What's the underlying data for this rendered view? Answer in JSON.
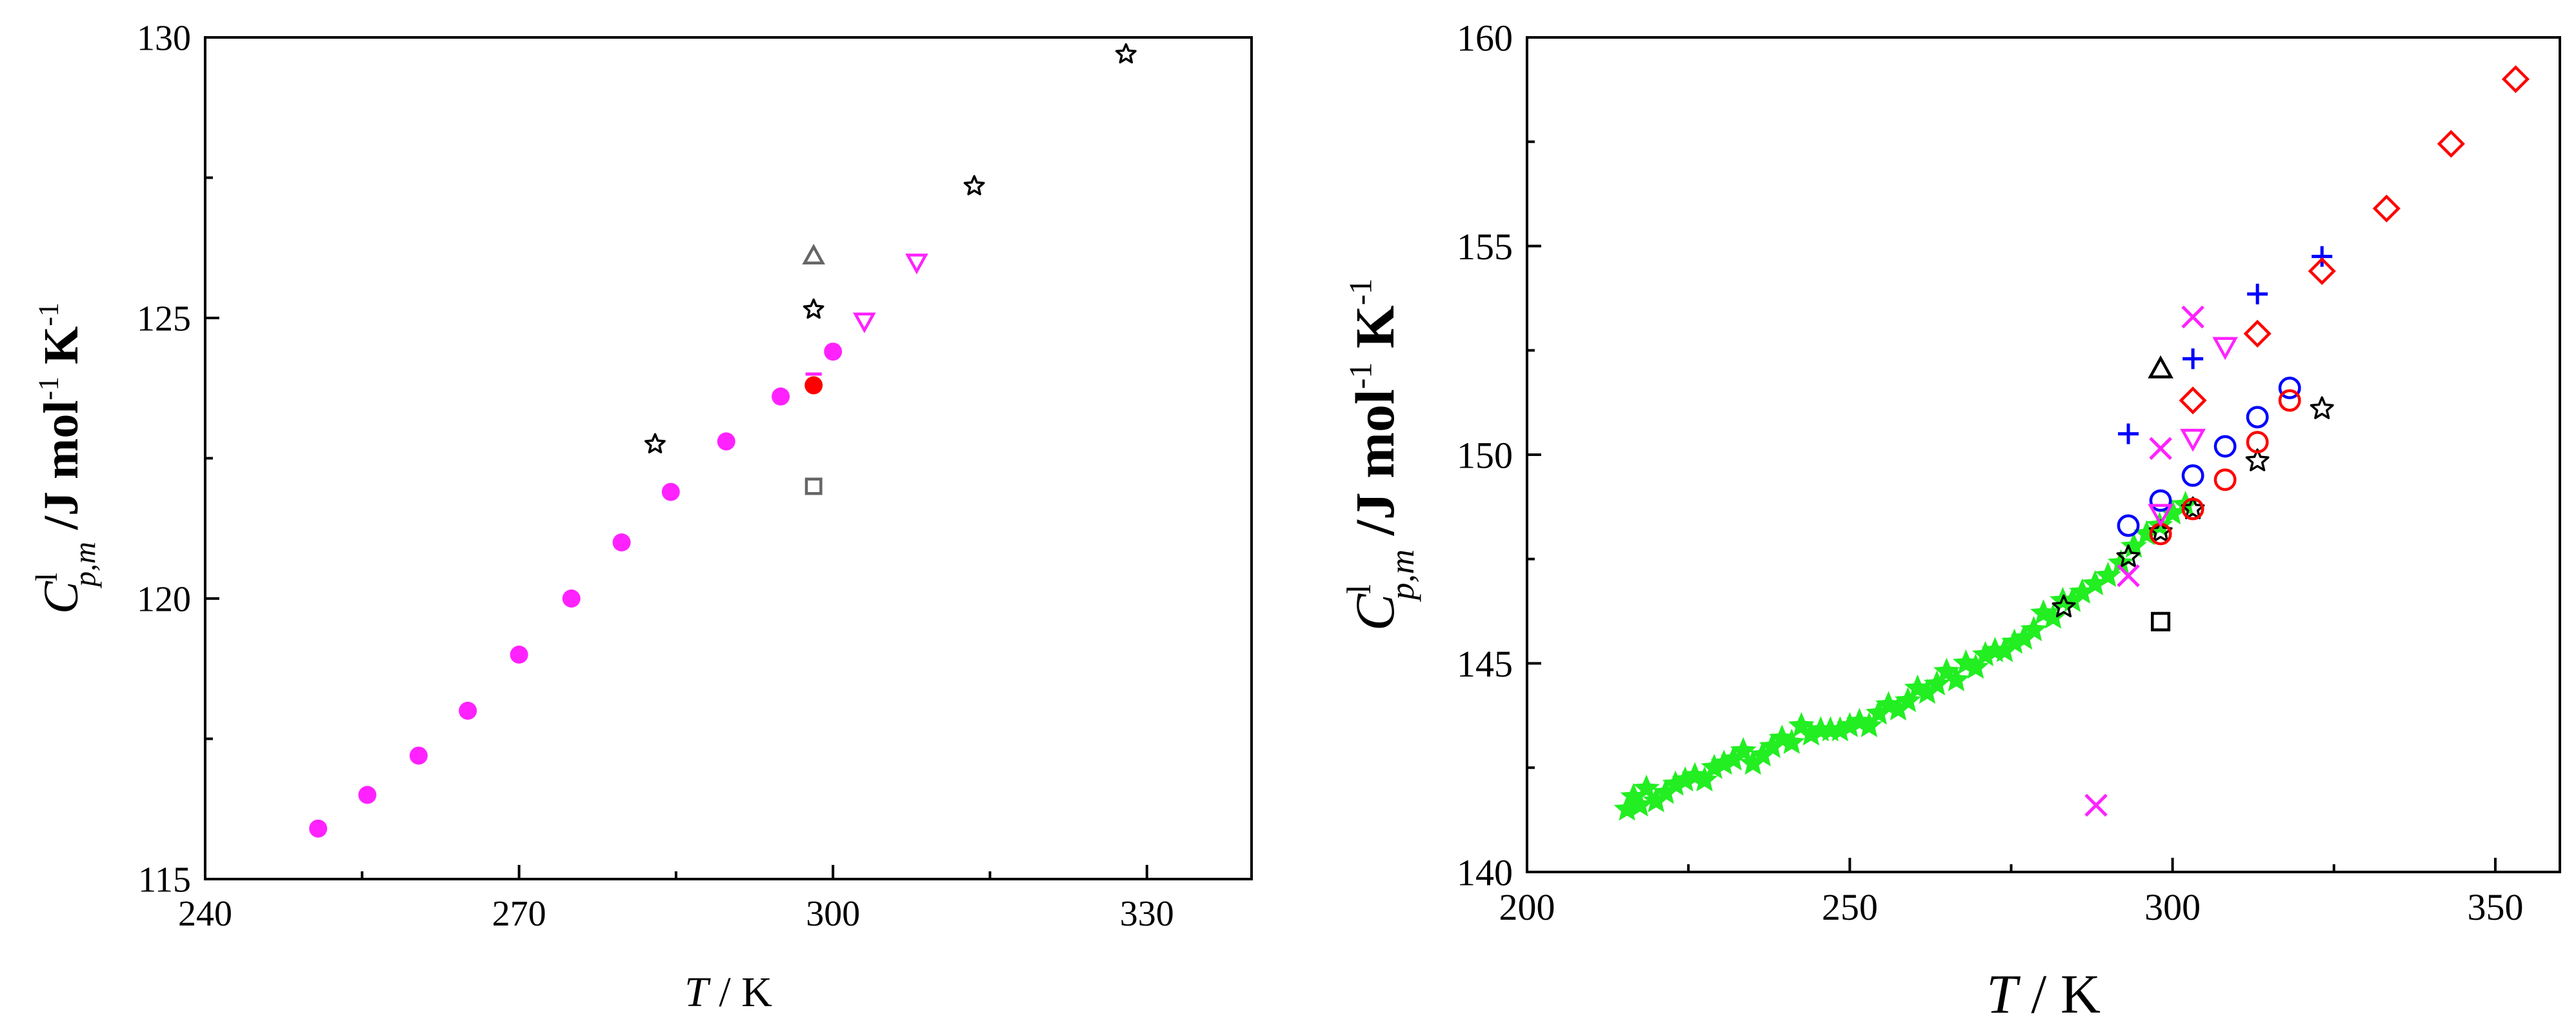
{
  "chart_data": [
    {
      "type": "scatter",
      "xlabel_var": "T",
      "xlabel_unit": " / K",
      "ylabel_main": "C",
      "ylabel_sup": "l",
      "ylabel_sub": "p,m",
      "ylabel_unit": " /J mol",
      "ylabel_exp1": "-1",
      "ylabel_k": " K",
      "ylabel_exp2": "-1",
      "xlim": [
        240,
        340
      ],
      "ylim": [
        115,
        130
      ],
      "xticks": [
        240,
        270,
        300,
        330
      ],
      "yticks": [
        115,
        120,
        125,
        130
      ],
      "grid": false,
      "series": [
        {
          "marker": "filled-circle",
          "color": "#ff22ff",
          "points": [
            [
              250.8,
              115.9
            ],
            [
              255.5,
              116.5
            ],
            [
              260.4,
              117.2
            ],
            [
              265.1,
              118.0
            ],
            [
              270.0,
              119.0
            ],
            [
              275.0,
              120.0
            ],
            [
              279.8,
              121.0
            ],
            [
              284.5,
              121.9
            ],
            [
              289.8,
              122.8
            ],
            [
              295.0,
              123.6
            ],
            [
              300.0,
              124.4
            ]
          ]
        },
        {
          "marker": "filled-circle",
          "color": "#ff0000",
          "points": [
            [
              298.15,
              123.8
            ]
          ]
        },
        {
          "marker": "open-star",
          "color": "#000000",
          "points": [
            [
              283.0,
              122.75
            ],
            [
              298.15,
              125.15
            ],
            [
              313.5,
              127.35
            ],
            [
              328.0,
              129.7
            ]
          ]
        },
        {
          "marker": "open-triangle-up",
          "color": "#666666",
          "points": [
            [
              298.15,
              126.1
            ]
          ]
        },
        {
          "marker": "open-square",
          "color": "#666666",
          "points": [
            [
              298.15,
              122.0
            ]
          ]
        },
        {
          "marker": "open-triangle-down",
          "color": "#ff22ff",
          "points": [
            [
              303.0,
              124.95
            ],
            [
              308.0,
              126.0
            ]
          ]
        },
        {
          "marker": "small-dash",
          "color": "#ff22ff",
          "points": [
            [
              298.15,
              124.0
            ]
          ]
        }
      ]
    },
    {
      "type": "scatter",
      "xlabel_var": "T",
      "xlabel_unit": " / K",
      "ylabel_main": "C",
      "ylabel_sup": "l",
      "ylabel_sub": "p,m",
      "ylabel_unit": " /J mol",
      "ylabel_exp1": "-1",
      "ylabel_k": " K",
      "ylabel_exp2": "-1",
      "xlim": [
        200,
        360
      ],
      "ylim": [
        140,
        160
      ],
      "xticks": [
        200,
        250,
        300,
        350
      ],
      "yticks": [
        140,
        145,
        150,
        155,
        160
      ],
      "grid": false,
      "series": [
        {
          "marker": "filled-star",
          "color": "#22ee22",
          "points": [
            [
              215.5,
              141.5
            ],
            [
              216.5,
              141.8
            ],
            [
              217.5,
              141.6
            ],
            [
              218.5,
              142.0
            ],
            [
              220.0,
              141.7
            ],
            [
              221.5,
              141.9
            ],
            [
              223.0,
              142.1
            ],
            [
              224.5,
              142.2
            ],
            [
              226.0,
              142.3
            ],
            [
              227.5,
              142.2
            ],
            [
              229.0,
              142.5
            ],
            [
              230.5,
              142.6
            ],
            [
              232.0,
              142.7
            ],
            [
              233.5,
              142.9
            ],
            [
              235.0,
              142.6
            ],
            [
              236.5,
              142.8
            ],
            [
              238.0,
              143.0
            ],
            [
              239.5,
              143.2
            ],
            [
              241.0,
              143.1
            ],
            [
              242.5,
              143.5
            ],
            [
              244.0,
              143.3
            ],
            [
              245.5,
              143.4
            ],
            [
              247.0,
              143.4
            ],
            [
              248.5,
              143.4
            ],
            [
              250.0,
              143.5
            ],
            [
              251.5,
              143.6
            ],
            [
              253.0,
              143.5
            ],
            [
              254.5,
              143.8
            ],
            [
              256.0,
              144.0
            ],
            [
              257.5,
              143.9
            ],
            [
              259.0,
              144.1
            ],
            [
              260.5,
              144.4
            ],
            [
              262.0,
              144.3
            ],
            [
              263.5,
              144.5
            ],
            [
              265.0,
              144.8
            ],
            [
              266.5,
              144.6
            ],
            [
              268.0,
              145.0
            ],
            [
              269.5,
              144.9
            ],
            [
              271.0,
              145.2
            ],
            [
              272.5,
              145.3
            ],
            [
              274.0,
              145.3
            ],
            [
              275.5,
              145.5
            ],
            [
              277.0,
              145.6
            ],
            [
              278.5,
              145.8
            ],
            [
              280.0,
              146.2
            ],
            [
              281.5,
              146.1
            ],
            [
              283.0,
              146.5
            ],
            [
              284.5,
              146.5
            ],
            [
              286.0,
              146.7
            ],
            [
              288.0,
              146.9
            ],
            [
              290.0,
              147.1
            ],
            [
              292.0,
              147.4
            ],
            [
              294.0,
              147.8
            ],
            [
              296.0,
              148.1
            ],
            [
              298.0,
              148.3
            ],
            [
              300.0,
              148.6
            ],
            [
              302.0,
              148.8
            ]
          ]
        },
        {
          "marker": "open-star",
          "color": "#000000",
          "points": [
            [
              283.15,
              146.35
            ],
            [
              293.15,
              147.55
            ],
            [
              298.15,
              148.15
            ],
            [
              303.15,
              148.7
            ],
            [
              313.15,
              149.85
            ],
            [
              323.15,
              151.1
            ]
          ]
        },
        {
          "marker": "open-circle",
          "color": "#0000ff",
          "points": [
            [
              293.15,
              148.3
            ],
            [
              298.15,
              148.9
            ],
            [
              303.15,
              149.5
            ],
            [
              308.15,
              150.2
            ],
            [
              313.15,
              150.9
            ],
            [
              318.15,
              151.6
            ]
          ]
        },
        {
          "marker": "open-circle",
          "color": "#ff0000",
          "points": [
            [
              298.15,
              148.1
            ],
            [
              303.15,
              148.7
            ],
            [
              308.15,
              149.4
            ],
            [
              313.15,
              150.3
            ],
            [
              318.15,
              151.3
            ]
          ]
        },
        {
          "marker": "plus",
          "color": "#0000ff",
          "points": [
            [
              293.15,
              150.5
            ],
            [
              303.15,
              152.3
            ],
            [
              313.15,
              153.85
            ],
            [
              323.15,
              154.75
            ]
          ]
        },
        {
          "marker": "open-diamond",
          "color": "#ff0000",
          "points": [
            [
              303.15,
              151.3
            ],
            [
              313.15,
              152.9
            ],
            [
              323.15,
              154.4
            ],
            [
              333.15,
              155.9
            ],
            [
              343.15,
              157.45
            ],
            [
              353.15,
              159.0
            ]
          ]
        },
        {
          "marker": "x",
          "color": "#ff22ff",
          "points": [
            [
              288.15,
              141.6
            ],
            [
              293.15,
              147.1
            ],
            [
              298.15,
              150.15
            ],
            [
              303.15,
              153.3
            ]
          ]
        },
        {
          "marker": "open-triangle-down",
          "color": "#ff22ff",
          "points": [
            [
              298.15,
              148.6
            ],
            [
              303.15,
              150.4
            ],
            [
              308.15,
              152.6
            ]
          ]
        },
        {
          "marker": "open-triangle-up",
          "color": "#000000",
          "points": [
            [
              298.15,
              152.05
            ]
          ]
        },
        {
          "marker": "open-square",
          "color": "#000000",
          "points": [
            [
              298.15,
              146.0
            ]
          ]
        }
      ]
    }
  ]
}
